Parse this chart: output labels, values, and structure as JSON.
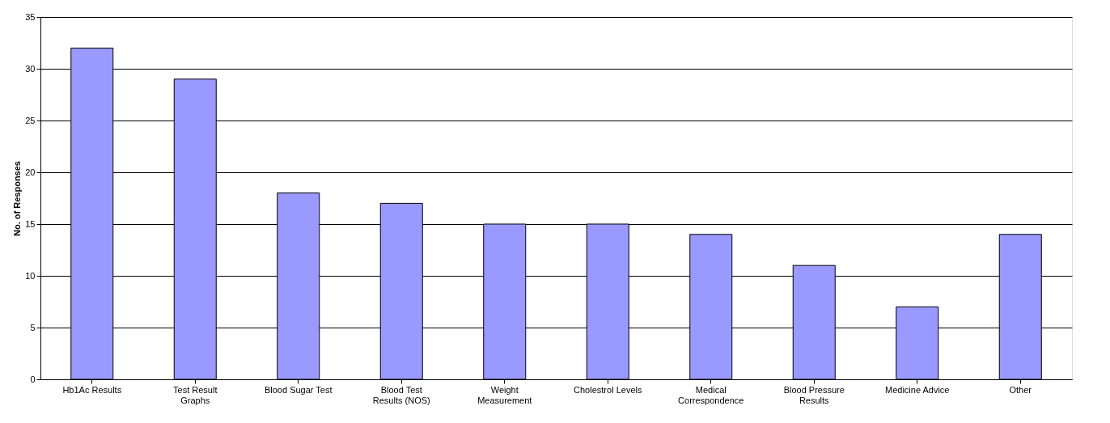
{
  "chart_data": {
    "type": "bar",
    "ylabel": "No. of Responses",
    "categories": [
      "Hb1Ac Results",
      "Test Result Graphs",
      "Blood Sugar Test",
      "Blood Test Results (NOS)",
      "Weight Measurement",
      "Cholestrol Levels",
      "Medical Correspondence",
      "Blood Pressure Results",
      "Medicine Advice",
      "Other"
    ],
    "values": [
      32,
      29,
      18,
      17,
      15,
      15,
      14,
      11,
      7,
      14
    ],
    "color": "#9999ff",
    "ylim": [
      0,
      35
    ],
    "yticks": [
      0,
      5,
      10,
      15,
      20,
      25,
      30,
      35
    ],
    "grid": "y"
  }
}
